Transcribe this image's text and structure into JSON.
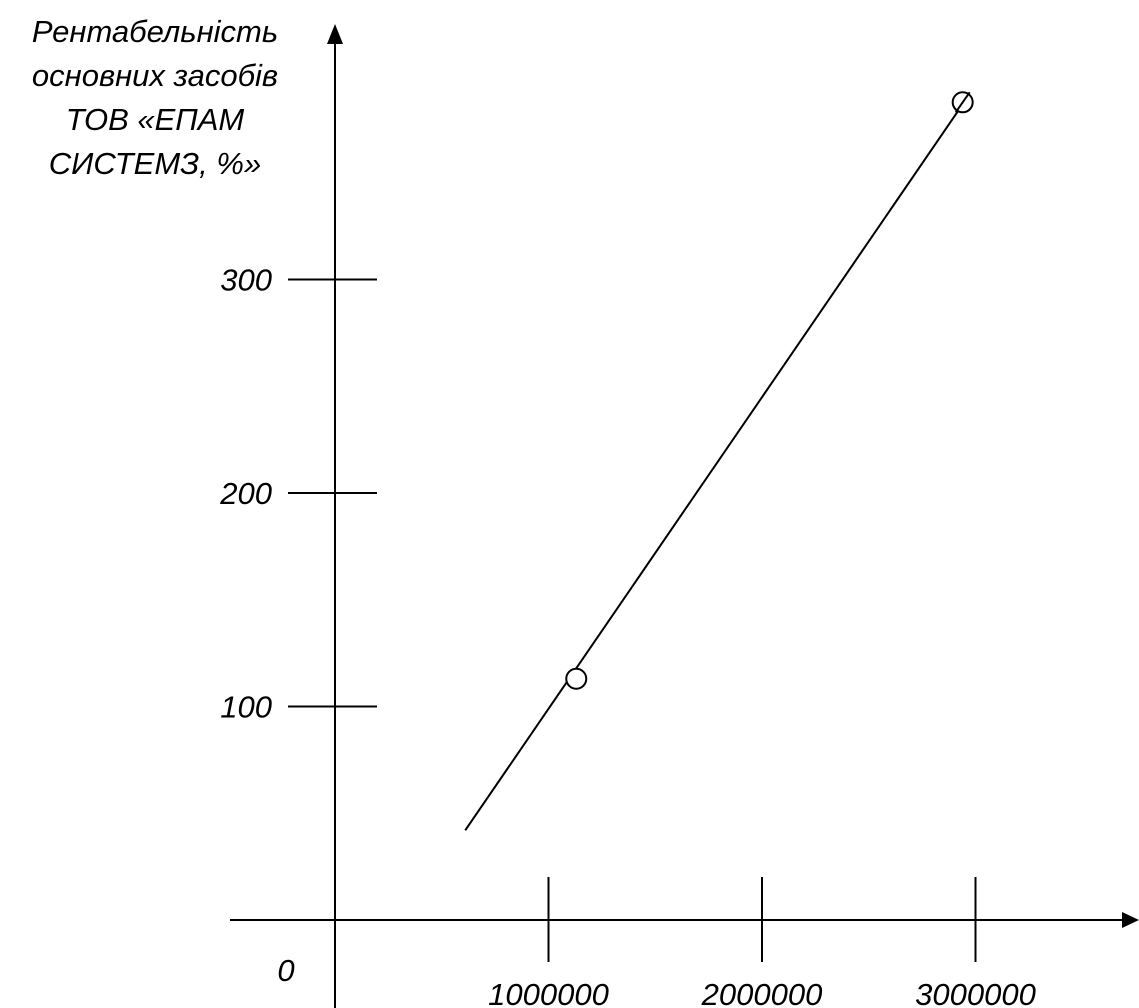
{
  "chart_data": {
    "type": "scatter",
    "ylabel_lines": [
      "Рентабельність",
      "основних засобів",
      "ТОВ «ЕПАМ",
      "СИСТЕМЗ, %»"
    ],
    "xlabel": "",
    "origin_label": "0",
    "x_ticks": [
      1000000,
      2000000,
      3000000
    ],
    "x_tick_labels": [
      "1000000",
      "2000000",
      "3000000"
    ],
    "y_ticks": [
      100,
      200,
      300
    ],
    "y_tick_labels": [
      "100",
      "200",
      "300"
    ],
    "xlim": [
      -480000,
      3740000
    ],
    "ylim": [
      -180,
      390
    ],
    "points": [
      {
        "x": 1130000,
        "y": 113
      },
      {
        "x": 2940000,
        "y": 383
      }
    ],
    "trend_line": {
      "x": [
        610000,
        2960000
      ],
      "y": [
        42,
        385
      ]
    },
    "grid": false,
    "legend": "none"
  }
}
